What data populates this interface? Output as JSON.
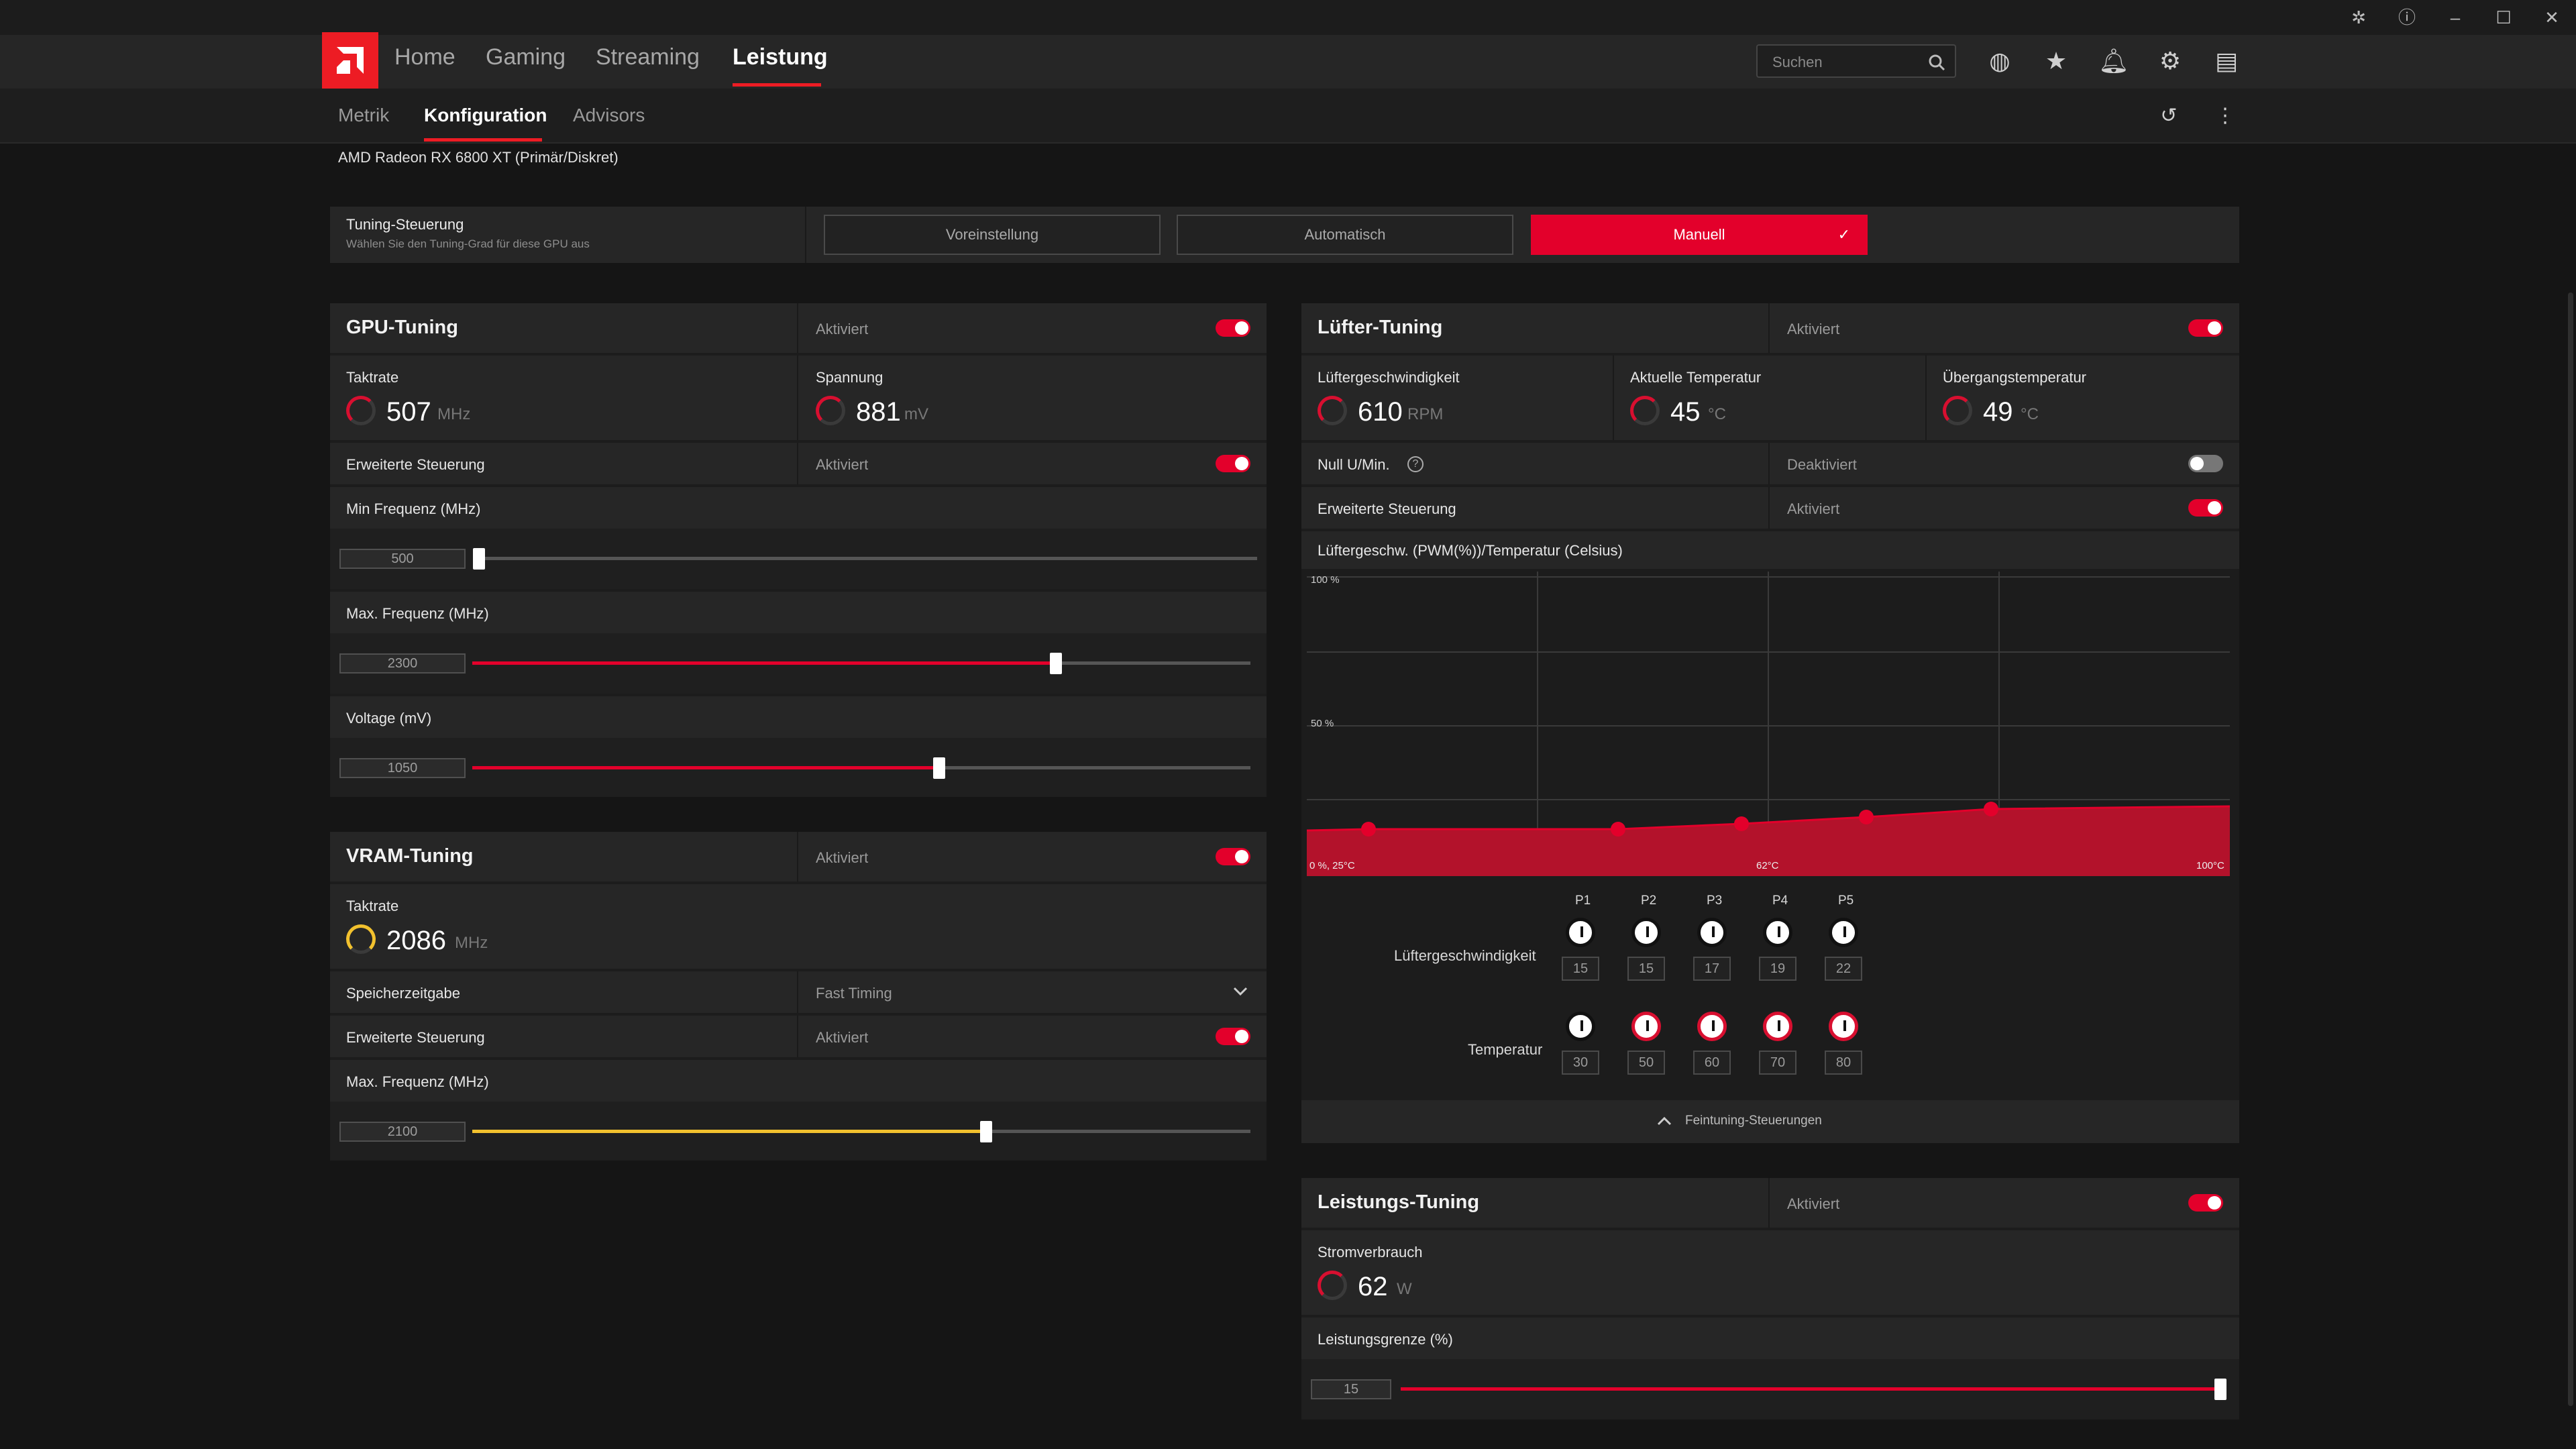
{
  "nav": {
    "items": [
      "Home",
      "Gaming",
      "Streaming",
      "Leistung"
    ],
    "active": "Leistung",
    "search_placeholder": "Suchen"
  },
  "subnav": {
    "items": [
      "Metrik",
      "Konfiguration",
      "Advisors"
    ],
    "active": "Konfiguration"
  },
  "device": "AMD Radeon RX 6800 XT (Primär/Diskret)",
  "tuning_control": {
    "label": "Tuning-Steuerung",
    "description": "Wählen Sie den Tuning-Grad für diese GPU aus",
    "modes": [
      "Voreinstellung",
      "Automatisch",
      "Manuell"
    ],
    "selected": "Manuell",
    "check": "✓"
  },
  "gpu_tuning": {
    "title": "GPU-Tuning",
    "status": "Aktiviert",
    "enabled": true,
    "clock": {
      "label": "Taktrate",
      "value": "507",
      "unit": "MHz"
    },
    "voltage": {
      "label": "Spannung",
      "value": "881",
      "unit": "mV"
    },
    "advanced": {
      "label": "Erweiterte Steuerung",
      "status": "Aktiviert",
      "enabled": true
    },
    "min_freq": {
      "label": "Min Frequenz (MHz)",
      "value": "500",
      "fraction": 0.0
    },
    "max_freq": {
      "label": "Max. Frequenz (MHz)",
      "value": "2300",
      "fraction": 0.75
    },
    "voltage_slider": {
      "label": "Voltage (mV)",
      "value": "1050",
      "fraction": 0.6
    }
  },
  "vram_tuning": {
    "title": "VRAM-Tuning",
    "status": "Aktiviert",
    "enabled": true,
    "clock": {
      "label": "Taktrate",
      "value": "2086",
      "unit": "MHz"
    },
    "memory_timing": {
      "label": "Speicherzeitgabe",
      "value": "Fast Timing"
    },
    "advanced": {
      "label": "Erweiterte Steuerung",
      "status": "Aktiviert",
      "enabled": true
    },
    "max_freq": {
      "label": "Max. Frequenz (MHz)",
      "value": "2100",
      "fraction": 0.66
    }
  },
  "fan_tuning": {
    "title": "Lüfter-Tuning",
    "status": "Aktiviert",
    "enabled": true,
    "fan_speed": {
      "label": "Lüftergeschwindigkeit",
      "value": "610",
      "unit": "RPM"
    },
    "current_temp": {
      "label": "Aktuelle Temperatur",
      "value": "45",
      "unit": "°C"
    },
    "junction_temp": {
      "label": "Übergangstemperatur",
      "value": "49",
      "unit": "°C"
    },
    "zero_rpm": {
      "label": "Null U/Min.",
      "status": "Deaktiviert",
      "enabled": false
    },
    "advanced": {
      "label": "Erweiterte Steuerung",
      "status": "Aktiviert",
      "enabled": true
    },
    "curve_label": "Lüftergeschw. (PWM(%))/Temperatur (Celsius)",
    "curve_axis": {
      "y_top": "100 %",
      "y_mid": "50 %",
      "x_left": "0 %, 25°C",
      "x_mid": "62°C",
      "x_right": "100°C"
    },
    "points": [
      "P1",
      "P2",
      "P3",
      "P4",
      "P5"
    ],
    "speed_row_label": "Lüftergeschwindigkeit",
    "temp_row_label": "Temperatur",
    "speeds": [
      "15",
      "15",
      "17",
      "19",
      "22"
    ],
    "temps": [
      "30",
      "50",
      "60",
      "70",
      "80"
    ],
    "fine_tuning": "Feintuning-Steuerungen"
  },
  "power_tuning": {
    "title": "Leistungs-Tuning",
    "status": "Aktiviert",
    "enabled": true,
    "consumption": {
      "label": "Stromverbrauch",
      "value": "62",
      "unit": "W"
    },
    "limit": {
      "label": "Leistungsgrenze (%)",
      "value": "15",
      "fraction": 1.0
    }
  },
  "colors": {
    "accent": "#e3002b",
    "vram": "#f2c12e",
    "panel": "#262626",
    "bg": "#151515"
  }
}
